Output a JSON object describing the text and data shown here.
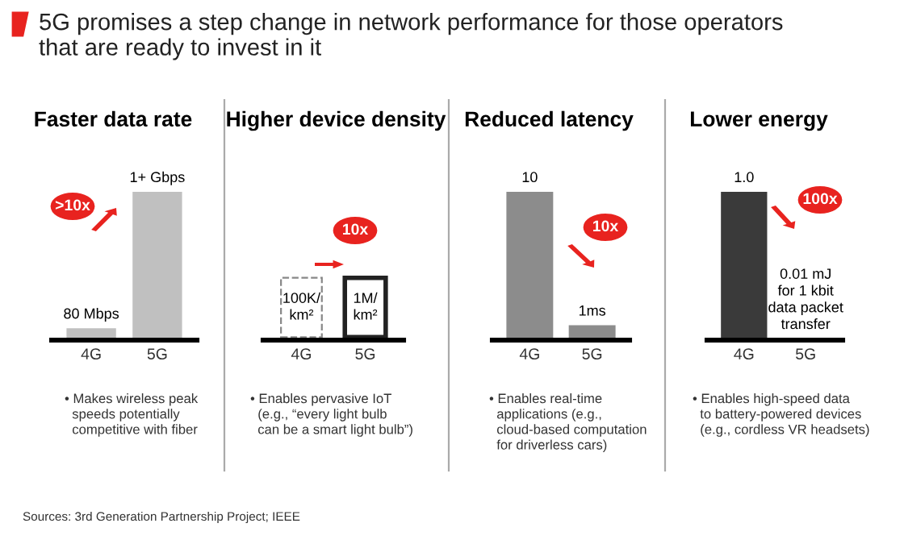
{
  "chart_data": [
    {
      "type": "other",
      "title": "5G promises a step change in network performance for those operators\nthat are ready to invest in it",
      "annotations": [
        "Sources: 3rd Generation Partnership Project; IEEE"
      ]
    },
    {
      "type": "bar",
      "title": "Faster data rate",
      "categories": [
        "4G",
        "5G"
      ],
      "values": [
        80,
        1000
      ],
      "color": "#c0c0c0",
      "value_labels": [
        "80 Mbps",
        "1+ Gbps"
      ],
      "annotations": [
        ">10x",
        "• Makes wireless peak\n  speeds potentially\n  competitive with fiber"
      ]
    },
    {
      "type": "other",
      "title": "Higher device density",
      "categories": [
        "4G",
        "5G"
      ],
      "value_labels": [
        "100K/\nkm²",
        "1M/\nkm²"
      ],
      "annotations": [
        "10x",
        "• Enables pervasive IoT\n  (e.g., “every light bulb\n  can be a smart light bulb”)"
      ]
    },
    {
      "type": "bar",
      "title": "Reduced latency",
      "categories": [
        "4G",
        "5G"
      ],
      "values": [
        10,
        1
      ],
      "color": "#8c8c8c",
      "value_labels": [
        "10",
        "1ms"
      ],
      "annotations": [
        "10x",
        "• Enables real-time\n  applications (e.g.,\n  cloud-based computation\n  for driverless cars)"
      ]
    },
    {
      "type": "bar",
      "title": "Lower energy",
      "categories": [
        "4G",
        "5G"
      ],
      "values": [
        1.0,
        0.01
      ],
      "color": "#3a3a3a",
      "value_labels": [
        "1.0",
        "0.01 mJ\nfor 1 kbit\ndata packet\ntransfer"
      ],
      "annotations": [
        "100x",
        "• Enables high-speed data\n  to battery-powered devices\n  (e.g., cordless VR headsets)"
      ]
    }
  ]
}
